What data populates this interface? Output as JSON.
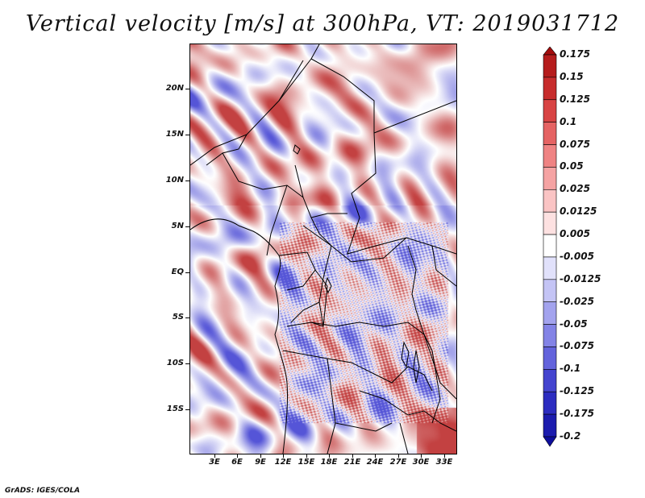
{
  "title": "Vertical velocity [m/s] at 300hPa, VT: 2019031712",
  "footer": "GrADS: IGES/COLA",
  "map": {
    "lat_labels": [
      "20N",
      "15N",
      "10N",
      "5N",
      "EQ",
      "5S",
      "10S",
      "15S"
    ],
    "lon_labels": [
      "3E",
      "6E",
      "9E",
      "12E",
      "15E",
      "18E",
      "21E",
      "24E",
      "27E",
      "30E",
      "33E"
    ],
    "lat_range": [
      -19.5,
      25
    ],
    "lon_range": [
      0.5,
      34
    ]
  },
  "colorbar": {
    "labels": [
      "0.175",
      "0.15",
      "0.125",
      "0.1",
      "0.075",
      "0.05",
      "0.025",
      "0.0125",
      "0.005",
      "-0.005",
      "-0.0125",
      "-0.025",
      "-0.05",
      "-0.075",
      "-0.1",
      "-0.125",
      "-0.175",
      "-0.2"
    ],
    "colors": [
      "#a30c0c",
      "#b51c1c",
      "#c72c2c",
      "#d84444",
      "#e56363",
      "#ef8383",
      "#f5a3a3",
      "#fac4c4",
      "#fde1e1",
      "#ffffff",
      "#e1e1fb",
      "#c4c4f5",
      "#a3a3ee",
      "#8383e6",
      "#6363dc",
      "#4444cf",
      "#2c2cc0",
      "#1c1cae",
      "#0e0e9c"
    ]
  }
}
